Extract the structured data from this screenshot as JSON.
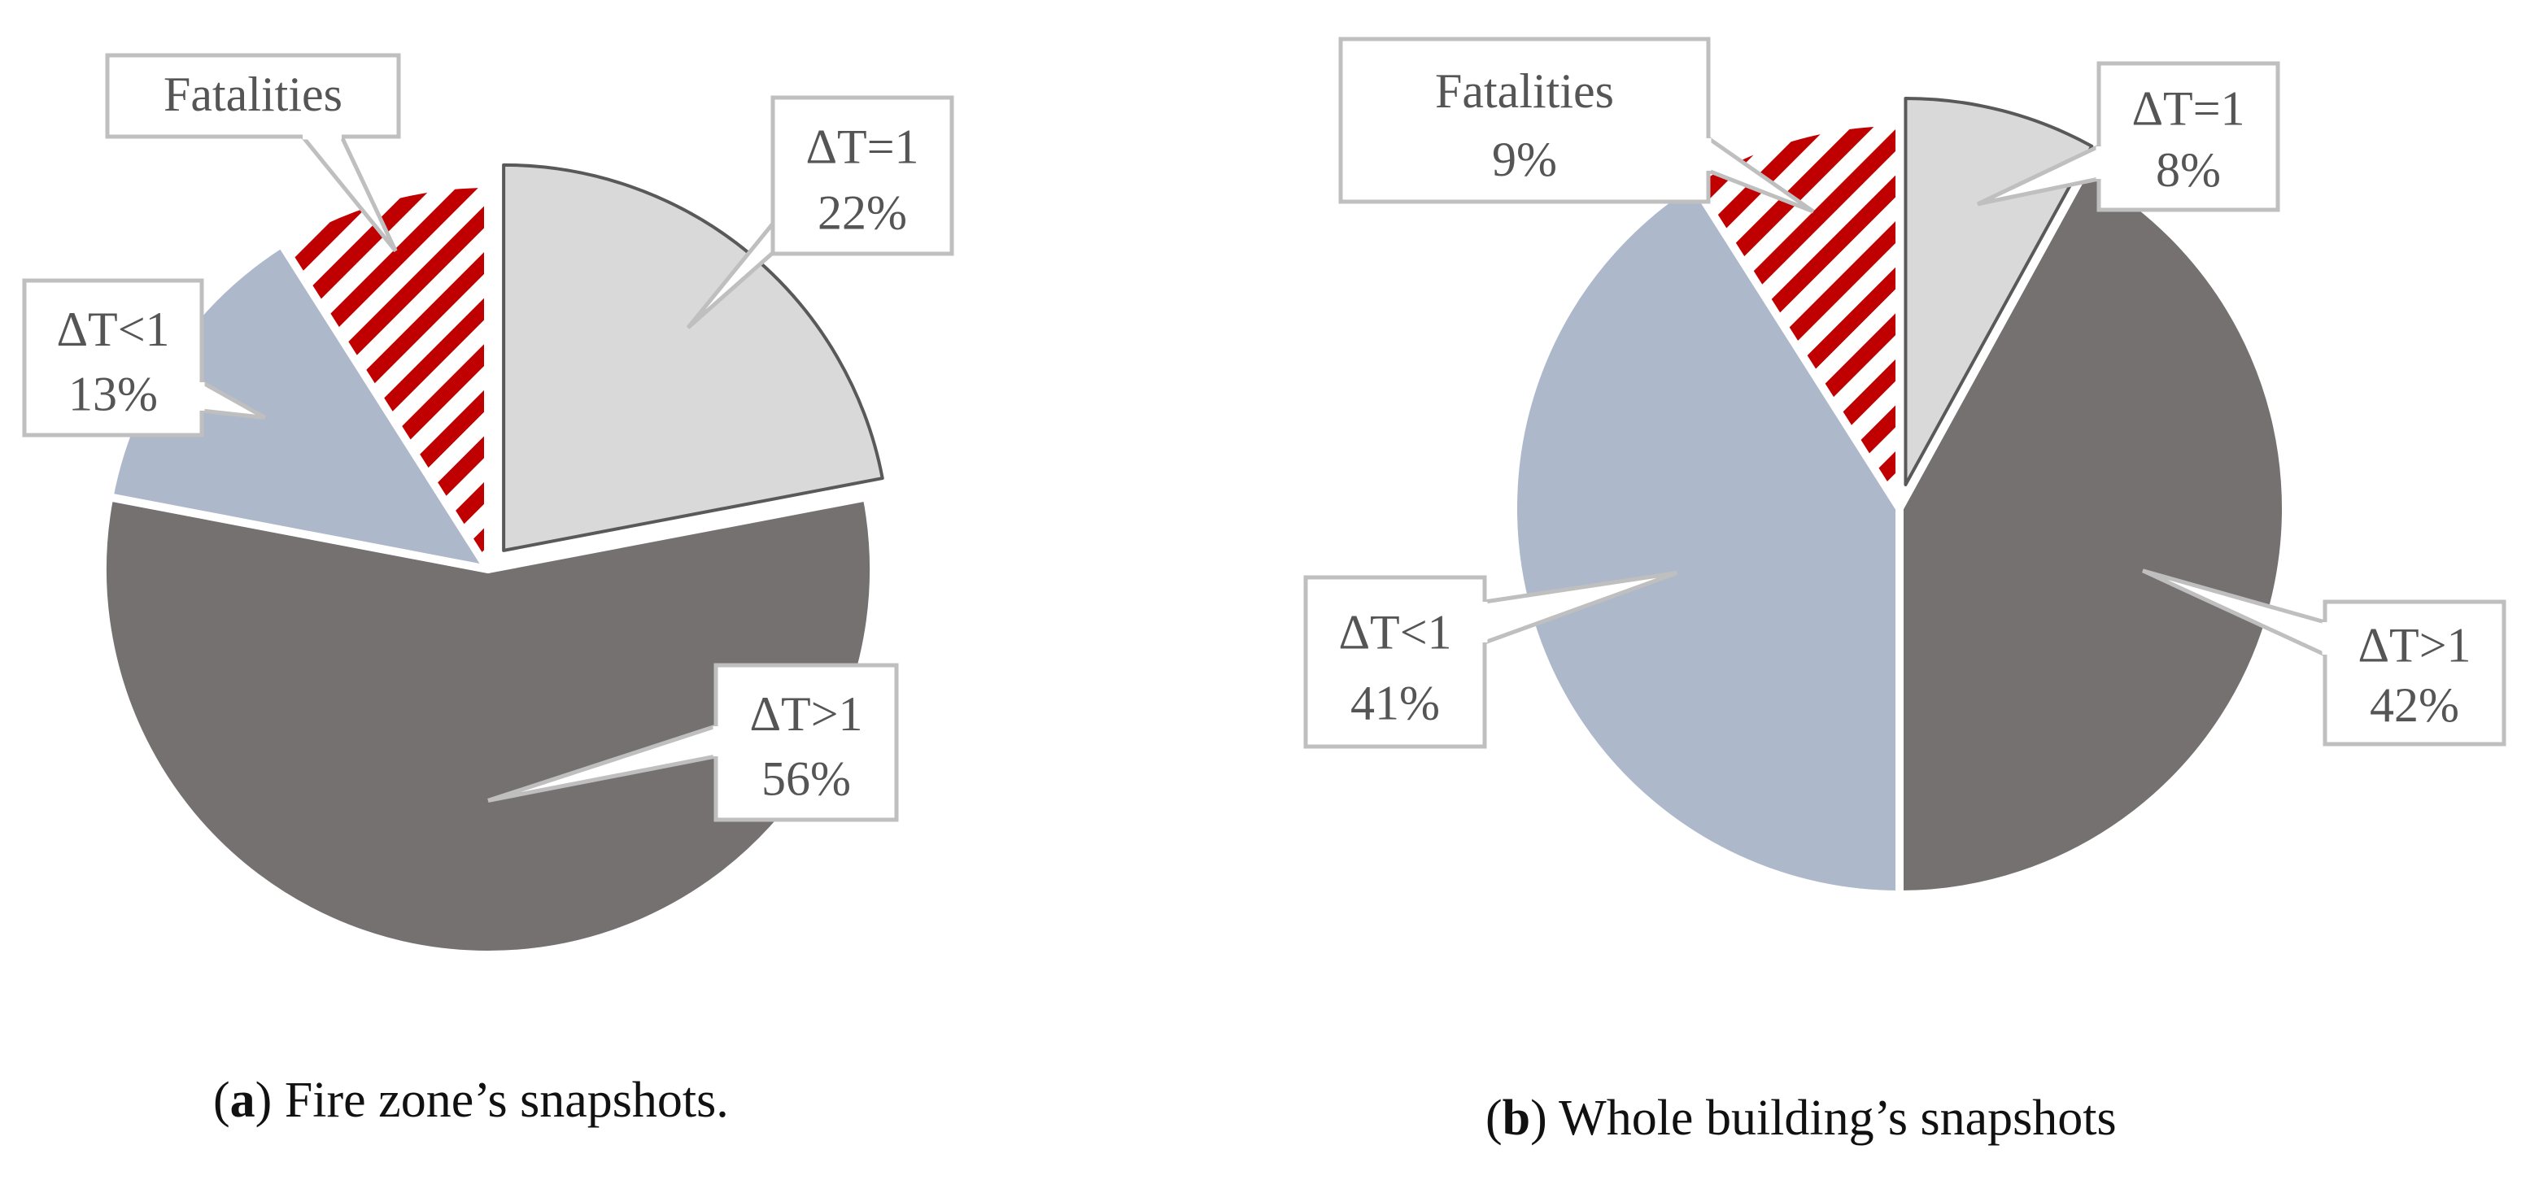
{
  "chart_data": [
    {
      "type": "pie",
      "panel": "a",
      "caption_letter": "a",
      "caption_text": " Fire zone’s snapshots.",
      "slices": [
        {
          "label": "ΔT=1",
          "value_text": "22%",
          "value": 22,
          "color": "#d9d9d9",
          "pattern": "none",
          "exploded": true
        },
        {
          "label": "ΔT>1",
          "value_text": "56%",
          "value": 56,
          "color": "#767171",
          "pattern": "none",
          "exploded": false
        },
        {
          "label": "ΔT<1",
          "value_text": "13%",
          "value": 13,
          "color": "#adb9ca",
          "pattern": "none",
          "exploded": false
        },
        {
          "label": "Fatalities",
          "value_text": "",
          "value": 9,
          "color": "#c00000",
          "pattern": "diagonal-stripes",
          "exploded": false
        }
      ]
    },
    {
      "type": "pie",
      "panel": "b",
      "caption_letter": "b",
      "caption_text": " Whole building’s snapshots",
      "slices": [
        {
          "label": "ΔT=1",
          "value_text": "8%",
          "value": 8,
          "color": "#d9d9d9",
          "pattern": "none",
          "exploded": true
        },
        {
          "label": "ΔT>1",
          "value_text": "42%",
          "value": 42,
          "color": "#767171",
          "pattern": "none",
          "exploded": false
        },
        {
          "label": "ΔT<1",
          "value_text": "41%",
          "value": 41,
          "color": "#adb9ca",
          "pattern": "none",
          "exploded": false
        },
        {
          "label": "Fatalities",
          "value_text": "9%",
          "value": 9,
          "color": "#c00000",
          "pattern": "diagonal-stripes",
          "exploded": false
        }
      ]
    }
  ]
}
